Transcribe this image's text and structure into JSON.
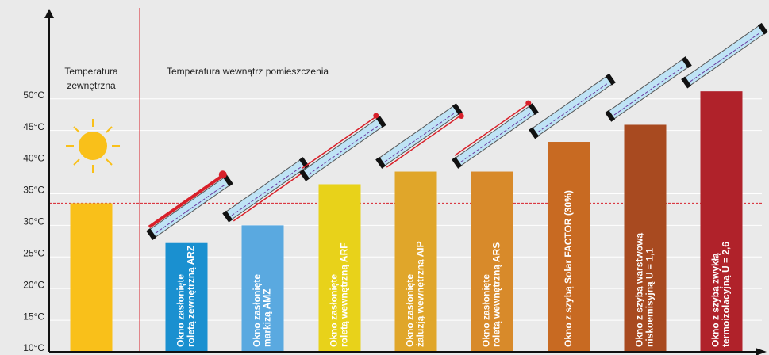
{
  "chart_data": {
    "type": "bar",
    "annotation": "Temperatura wewnątrz pomieszczenia",
    "categories": [
      [
        "Temperatura",
        "zewnętrzna"
      ],
      [
        "Okno zasłonięte",
        "roletą zewnętrzną ARZ"
      ],
      [
        "Okno zasłonięte",
        "markizą AMZ"
      ],
      [
        "Okno zasłonięte",
        "roletą wewnętrzną ARF"
      ],
      [
        "Okno zasłonięte",
        "żaluzją wewnętrzną AIP"
      ],
      [
        "Okno zasłonięte",
        "roletą wewnętrzną ARS"
      ],
      [
        "Okno z szybą Solar FACTOR (30%)"
      ],
      [
        "Okno z szybą warstwową",
        "niskoemisyjną U = 1,1"
      ],
      [
        "Okno z szybą zwykłą",
        "termoizolacyjną U = 2,6"
      ]
    ],
    "values": [
      33.5,
      27.2,
      30,
      36.5,
      38.5,
      38.5,
      43.2,
      45.9,
      51.2
    ],
    "colors": [
      "#f9c01a",
      "#1a90d0",
      "#5aa9e0",
      "#e8d21a",
      "#e0a62a",
      "#d88a2a",
      "#c86a22",
      "#a84a20",
      "#b0222a"
    ],
    "ylim": [
      10,
      63.75
    ],
    "yticks": [
      {
        "value": 10,
        "label": "10°C"
      },
      {
        "value": 15,
        "label": "15°C"
      },
      {
        "value": 20,
        "label": "20°C"
      },
      {
        "value": 25,
        "label": "25°C"
      },
      {
        "value": 30,
        "label": "30°C"
      },
      {
        "value": 35,
        "label": "35°C"
      },
      {
        "value": 40,
        "label": "40°C"
      },
      {
        "value": 45,
        "label": "45°C"
      },
      {
        "value": 50,
        "label": "50°C"
      }
    ],
    "grid": true
  }
}
